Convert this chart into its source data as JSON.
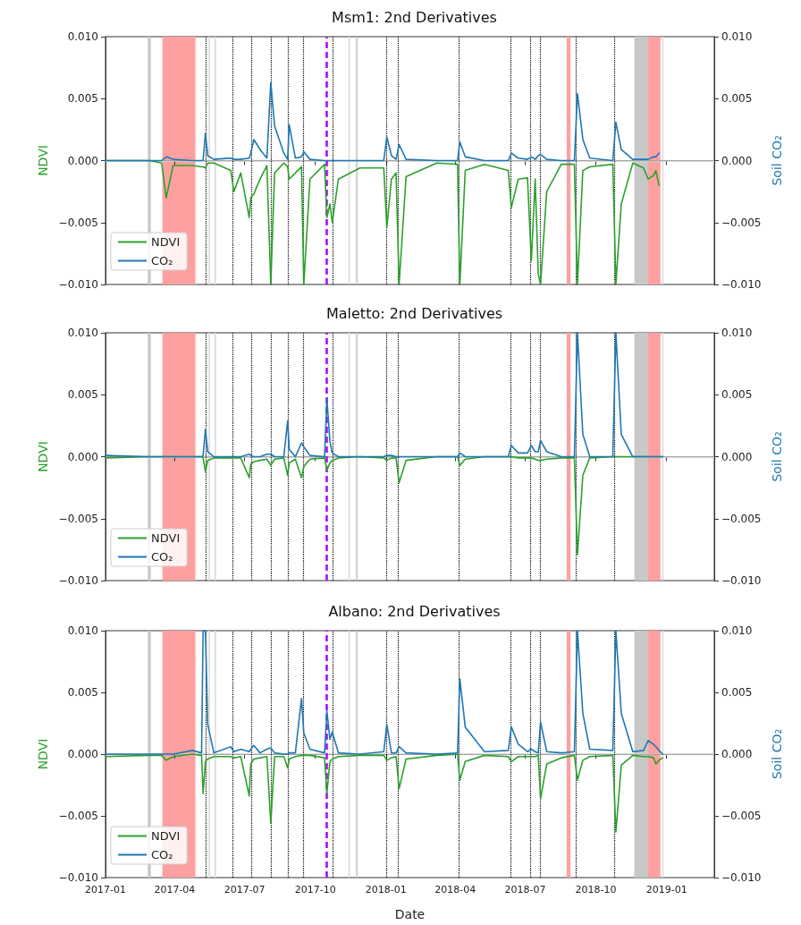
{
  "chart_data": [
    {
      "type": "line",
      "title": "Msm1: 2nd Derivatives",
      "ylabel": "NDVI",
      "y2label": "Soil CO₂",
      "x": [
        "2017-01-01",
        "2017-02-27",
        "2017-03-15",
        "2017-03-21",
        "2017-03-30",
        "2017-04-24",
        "2017-05-06",
        "2017-05-08",
        "2017-05-11",
        "2017-05-14",
        "2017-05-22",
        "2017-06-13",
        "2017-06-17",
        "2017-06-26",
        "2017-07-07",
        "2017-07-09",
        "2017-07-13",
        "2017-07-21",
        "2017-07-30",
        "2017-08-04",
        "2017-08-09",
        "2017-08-21",
        "2017-08-26",
        "2017-08-28",
        "2017-09-05",
        "2017-09-13",
        "2017-09-16",
        "2017-09-24",
        "2017-10-13",
        "2017-10-16",
        "2017-10-20",
        "2017-10-23",
        "2017-10-31",
        "2017-11-28",
        "2017-12-29",
        "2018-01-02",
        "2018-01-08",
        "2018-01-14",
        "2018-01-18",
        "2018-01-27",
        "2018-03-08",
        "2018-04-04",
        "2018-04-07",
        "2018-04-14",
        "2018-05-09",
        "2018-06-09",
        "2018-06-13",
        "2018-06-22",
        "2018-07-04",
        "2018-07-09",
        "2018-07-14",
        "2018-07-18",
        "2018-07-21",
        "2018-07-29",
        "2018-08-17",
        "2018-09-03",
        "2018-09-07",
        "2018-09-14",
        "2018-09-23",
        "2018-10-23",
        "2018-10-27",
        "2018-11-03",
        "2018-11-18",
        "2018-12-02",
        "2018-12-08",
        "2018-12-15",
        "2018-12-18",
        "2018-12-22"
      ],
      "series": [
        {
          "name": "NDVI",
          "color": "#2ca02c",
          "values": [
            0,
            0,
            -0.0002,
            -0.003,
            -0.0004,
            -0.0004,
            -0.0005,
            -0.0005,
            -0.0006,
            -0.0002,
            -0.0002,
            -0.0008,
            -0.0025,
            -0.001,
            -0.0046,
            -0.003,
            -0.0027,
            -0.0015,
            -0.0004,
            -0.01,
            -0.001,
            -0.0002,
            -0.0005,
            -0.0015,
            -0.001,
            -0.0005,
            -0.01,
            -0.0015,
            -0.0003,
            -0.0046,
            -0.0035,
            -0.005,
            -0.0015,
            -0.0006,
            -0.0006,
            -0.0054,
            -0.0015,
            -0.001,
            -0.01,
            -0.0013,
            -0.0002,
            -0.0003,
            -0.01,
            -0.0008,
            -0.0003,
            -0.0008,
            -0.0038,
            -0.0015,
            -0.0014,
            -0.0081,
            -0.0015,
            -0.0092,
            -0.01,
            -0.0025,
            -0.0003,
            -0.0003,
            -0.01,
            -0.0008,
            -0.0005,
            -0.0003,
            -0.01,
            -0.0035,
            -0.0002,
            -0.0006,
            -0.0015,
            -0.0012,
            -0.0008,
            -0.002
          ]
        },
        {
          "name": "CO₂",
          "color": "#1f77b4",
          "axis": "y2",
          "values": [
            0,
            0,
            0,
            0.0003,
            0.0001,
            0,
            0,
            0,
            0.0022,
            0.0004,
            0.0001,
            0.0002,
            0.0001,
            0.0001,
            0.0002,
            0.0006,
            0.0017,
            0.0009,
            0.0002,
            0.0063,
            0.0028,
            0.0006,
            0.0001,
            0.0029,
            0.0002,
            0.0003,
            0.0007,
            0.0001,
            0,
            0,
            0,
            0,
            0,
            0,
            0,
            0.0019,
            0.0004,
            0.0001,
            0.0013,
            0.0001,
            0,
            0,
            0.0015,
            0.0003,
            0,
            0,
            0.0006,
            0.0002,
            0.0001,
            0.0003,
            0.0001,
            0.0004,
            0.0005,
            0.0001,
            0,
            0,
            0.0054,
            0.0017,
            0.0002,
            0,
            0.0031,
            0.0009,
            0.0001,
            0.0001,
            0.0001,
            0.0003,
            0.0003,
            0.0006
          ]
        }
      ],
      "xlim": [
        "2017-01-01",
        "2019-03-04"
      ],
      "xticks": [
        "2017-01",
        "2017-04",
        "2017-07",
        "2017-10",
        "2018-01",
        "2018-04",
        "2018-07",
        "2018-10",
        "2019-01"
      ],
      "ylim": [
        -0.01,
        0.01
      ],
      "yticks": [
        {
          "value": -0.01,
          "label": "−0.010"
        },
        {
          "value": -0.005,
          "label": "−0.005"
        },
        {
          "value": 0,
          "label": "0.000"
        },
        {
          "value": 0.005,
          "label": "0.005"
        },
        {
          "value": 0.01,
          "label": "0.010"
        }
      ],
      "y2lim": [
        -0.01,
        0.01
      ],
      "y2ticks": [
        {
          "value": -0.01,
          "label": "−0.010"
        },
        {
          "value": -0.005,
          "label": "−0.005"
        },
        {
          "value": 0,
          "label": "0.000"
        },
        {
          "value": 0.005,
          "label": "0.005"
        },
        {
          "value": 0.01,
          "label": "0.010"
        }
      ],
      "bands": [
        {
          "axis": "x",
          "from": "2017-02-25",
          "to": "2017-03-01",
          "color": "#c8c8c8"
        },
        {
          "axis": "x",
          "from": "2017-03-16",
          "to": "2017-04-28",
          "color": "#ffa0a0"
        },
        {
          "axis": "x",
          "from": "2017-05-15",
          "to": "2017-05-17",
          "color": "#dddddd"
        },
        {
          "axis": "x",
          "from": "2017-05-23",
          "to": "2017-05-25",
          "color": "#dddddd"
        },
        {
          "axis": "x",
          "from": "2017-11-13",
          "to": "2017-11-15",
          "color": "#dddddd"
        },
        {
          "axis": "x",
          "from": "2017-11-23",
          "to": "2017-11-25",
          "color": "#c8c8c8"
        },
        {
          "axis": "x",
          "from": "2018-08-24",
          "to": "2018-08-29",
          "color": "#ffa0a0"
        },
        {
          "axis": "x",
          "from": "2018-11-20",
          "to": "2018-12-08",
          "color": "#c8c8c8"
        },
        {
          "axis": "x",
          "from": "2018-12-08",
          "to": "2018-12-24",
          "color": "#ffa0a0"
        },
        {
          "axis": "x",
          "from": "2018-12-26",
          "to": "2018-12-28",
          "color": "#dddddd"
        }
      ],
      "ref_lines": [
        {
          "axis": "y",
          "value": 0,
          "color": "#cccccc",
          "line_style": "solid"
        },
        {
          "axis": "x",
          "value": "2017-05-11",
          "color": "#000000",
          "line_style": "dotted"
        },
        {
          "axis": "x",
          "value": "2017-06-16",
          "color": "#000000",
          "line_style": "dotted"
        },
        {
          "axis": "x",
          "value": "2017-07-10",
          "color": "#000000",
          "line_style": "dotted"
        },
        {
          "axis": "x",
          "value": "2017-08-04",
          "color": "#000000",
          "line_style": "dotted"
        },
        {
          "axis": "x",
          "value": "2017-08-27",
          "color": "#000000",
          "line_style": "dotted"
        },
        {
          "axis": "x",
          "value": "2017-09-15",
          "color": "#000000",
          "line_style": "dotted"
        },
        {
          "axis": "x",
          "value": "2017-10-24",
          "color": "#000000",
          "line_style": "dotted"
        },
        {
          "axis": "x",
          "value": "2018-01-01",
          "color": "#000000",
          "line_style": "dotted"
        },
        {
          "axis": "x",
          "value": "2018-01-17",
          "color": "#000000",
          "line_style": "dotted"
        },
        {
          "axis": "x",
          "value": "2018-04-06",
          "color": "#000000",
          "line_style": "dotted"
        },
        {
          "axis": "x",
          "value": "2018-06-12",
          "color": "#000000",
          "line_style": "dotted"
        },
        {
          "axis": "x",
          "value": "2018-07-08",
          "color": "#000000",
          "line_style": "dotted"
        },
        {
          "axis": "x",
          "value": "2018-07-20",
          "color": "#000000",
          "line_style": "dotted"
        },
        {
          "axis": "x",
          "value": "2018-09-05",
          "color": "#000000",
          "line_style": "dotted"
        },
        {
          "axis": "x",
          "value": "2018-10-25",
          "color": "#000000",
          "line_style": "dotted"
        },
        {
          "axis": "x",
          "value": "2017-10-16",
          "color": "#aa00ff",
          "line_style": "dashed"
        }
      ],
      "legend": "bottom left",
      "tick_labels": "y"
    },
    {
      "type": "line",
      "title": "Maletto: 2nd Derivatives",
      "ylabel": "NDVI",
      "y2label": "Soil CO₂",
      "x": [
        "2017-01-01",
        "2017-02-27",
        "2017-03-15",
        "2017-03-21",
        "2017-03-30",
        "2017-04-24",
        "2017-05-06",
        "2017-05-08",
        "2017-05-11",
        "2017-05-14",
        "2017-05-22",
        "2017-06-13",
        "2017-06-17",
        "2017-06-26",
        "2017-07-07",
        "2017-07-09",
        "2017-07-13",
        "2017-07-21",
        "2017-07-30",
        "2017-08-04",
        "2017-08-09",
        "2017-08-21",
        "2017-08-26",
        "2017-08-28",
        "2017-09-05",
        "2017-09-13",
        "2017-09-16",
        "2017-09-24",
        "2017-10-13",
        "2017-10-16",
        "2017-10-20",
        "2017-10-23",
        "2017-10-31",
        "2017-11-28",
        "2017-12-29",
        "2018-01-02",
        "2018-01-08",
        "2018-01-14",
        "2018-01-18",
        "2018-01-27",
        "2018-03-08",
        "2018-04-04",
        "2018-04-07",
        "2018-04-14",
        "2018-05-09",
        "2018-06-09",
        "2018-06-13",
        "2018-06-22",
        "2018-07-04",
        "2018-07-09",
        "2018-07-14",
        "2018-07-18",
        "2018-07-21",
        "2018-07-29",
        "2018-08-17",
        "2018-09-03",
        "2018-09-07",
        "2018-09-14",
        "2018-09-23",
        "2018-10-23",
        "2018-10-27",
        "2018-11-03",
        "2018-11-18",
        "2018-12-02",
        "2018-12-08",
        "2018-12-15",
        "2018-12-18",
        "2018-12-22",
        "2018-12-27"
      ],
      "series": [
        {
          "name": "NDVI",
          "color": "#2ca02c",
          "values": [
            -0.0001,
            0,
            0,
            0,
            0,
            0,
            0,
            -0.0001,
            -0.0012,
            -0.0003,
            -0.0001,
            -0.0001,
            -0.0001,
            -0.0001,
            -0.0017,
            -0.0006,
            -0.0004,
            -0.0003,
            -0.0002,
            -0.0007,
            -0.0002,
            -0.0001,
            -0.0015,
            -0.0005,
            -0.0002,
            -0.0017,
            -0.0008,
            -0.0002,
            -0.0001,
            -0.0011,
            -0.0005,
            -0.0003,
            -0.0001,
            0,
            -0.0001,
            -0.0003,
            -0.0001,
            -0.0001,
            -0.0021,
            -0.0003,
            0,
            0,
            -0.0007,
            -0.0002,
            0,
            0,
            0,
            -0.0001,
            -0.0001,
            -0.0001,
            -0.0002,
            -0.0003,
            -0.0003,
            -0.0002,
            -0.0001,
            -0.0001,
            -0.0079,
            -0.0015,
            -0.0001,
            0,
            0,
            0,
            0,
            0,
            0,
            0,
            0,
            0,
            0
          ]
        },
        {
          "name": "CO₂",
          "color": "#1f77b4",
          "axis": "y2",
          "values": [
            0.0001,
            0,
            0,
            0,
            0,
            0,
            0,
            0.0001,
            0.0022,
            0.0004,
            0,
            0,
            0,
            0,
            0.0002,
            0.0001,
            0,
            0,
            0.0002,
            0.0002,
            0,
            0,
            0.0029,
            0.0006,
            0,
            0.0011,
            0.0008,
            0.0001,
            0,
            0.0047,
            0.0012,
            0.0003,
            0,
            0,
            0,
            0.0001,
            0.0001,
            0,
            0,
            0,
            0,
            0,
            0.0003,
            0,
            0,
            0,
            0.0009,
            0.0003,
            0.0003,
            0.0009,
            0.0004,
            0.0004,
            0.0013,
            0.0004,
            0,
            0,
            0.01,
            0.0018,
            0,
            0,
            0.01,
            0.0018,
            0,
            0,
            0,
            0,
            0,
            0,
            0
          ]
        }
      ],
      "xlim": [
        "2017-01-01",
        "2019-03-04"
      ],
      "xticks": [
        "2017-01",
        "2017-04",
        "2017-07",
        "2017-10",
        "2018-01",
        "2018-04",
        "2018-07",
        "2018-10",
        "2019-01"
      ],
      "ylim": [
        -0.01,
        0.01
      ],
      "yticks": [
        {
          "value": -0.01,
          "label": "−0.010"
        },
        {
          "value": -0.005,
          "label": "−0.005"
        },
        {
          "value": 0,
          "label": "0.000"
        },
        {
          "value": 0.005,
          "label": "0.005"
        },
        {
          "value": 0.01,
          "label": "0.010"
        }
      ],
      "y2lim": [
        -0.01,
        0.01
      ],
      "y2ticks": [
        {
          "value": -0.01,
          "label": "−0.010"
        },
        {
          "value": -0.005,
          "label": "−0.005"
        },
        {
          "value": 0,
          "label": "0.000"
        },
        {
          "value": 0.005,
          "label": "0.005"
        },
        {
          "value": 0.01,
          "label": "0.010"
        }
      ],
      "bands": [
        {
          "axis": "x",
          "from": "2017-02-25",
          "to": "2017-03-01",
          "color": "#c8c8c8"
        },
        {
          "axis": "x",
          "from": "2017-03-16",
          "to": "2017-04-28",
          "color": "#ffa0a0"
        },
        {
          "axis": "x",
          "from": "2017-05-15",
          "to": "2017-05-17",
          "color": "#dddddd"
        },
        {
          "axis": "x",
          "from": "2017-05-23",
          "to": "2017-05-25",
          "color": "#dddddd"
        },
        {
          "axis": "x",
          "from": "2017-11-13",
          "to": "2017-11-15",
          "color": "#dddddd"
        },
        {
          "axis": "x",
          "from": "2017-11-23",
          "to": "2017-11-25",
          "color": "#c8c8c8"
        },
        {
          "axis": "x",
          "from": "2018-08-24",
          "to": "2018-08-29",
          "color": "#ffa0a0"
        },
        {
          "axis": "x",
          "from": "2018-11-20",
          "to": "2018-12-08",
          "color": "#c8c8c8"
        },
        {
          "axis": "x",
          "from": "2018-12-08",
          "to": "2018-12-24",
          "color": "#ffa0a0"
        },
        {
          "axis": "x",
          "from": "2018-12-26",
          "to": "2018-12-28",
          "color": "#dddddd"
        }
      ],
      "ref_lines": [
        {
          "axis": "y",
          "value": 0,
          "color": "#cccccc",
          "line_style": "solid"
        },
        {
          "axis": "x",
          "value": "2017-05-11",
          "color": "#000000",
          "line_style": "dotted"
        },
        {
          "axis": "x",
          "value": "2017-06-16",
          "color": "#000000",
          "line_style": "dotted"
        },
        {
          "axis": "x",
          "value": "2017-07-10",
          "color": "#000000",
          "line_style": "dotted"
        },
        {
          "axis": "x",
          "value": "2017-08-04",
          "color": "#000000",
          "line_style": "dotted"
        },
        {
          "axis": "x",
          "value": "2017-08-27",
          "color": "#000000",
          "line_style": "dotted"
        },
        {
          "axis": "x",
          "value": "2017-09-15",
          "color": "#000000",
          "line_style": "dotted"
        },
        {
          "axis": "x",
          "value": "2017-10-24",
          "color": "#000000",
          "line_style": "dotted"
        },
        {
          "axis": "x",
          "value": "2018-01-01",
          "color": "#000000",
          "line_style": "dotted"
        },
        {
          "axis": "x",
          "value": "2018-01-17",
          "color": "#000000",
          "line_style": "dotted"
        },
        {
          "axis": "x",
          "value": "2018-04-06",
          "color": "#000000",
          "line_style": "dotted"
        },
        {
          "axis": "x",
          "value": "2018-06-12",
          "color": "#000000",
          "line_style": "dotted"
        },
        {
          "axis": "x",
          "value": "2018-07-08",
          "color": "#000000",
          "line_style": "dotted"
        },
        {
          "axis": "x",
          "value": "2018-07-20",
          "color": "#000000",
          "line_style": "dotted"
        },
        {
          "axis": "x",
          "value": "2018-09-05",
          "color": "#000000",
          "line_style": "dotted"
        },
        {
          "axis": "x",
          "value": "2018-10-25",
          "color": "#000000",
          "line_style": "dotted"
        },
        {
          "axis": "x",
          "value": "2017-10-16",
          "color": "#aa00ff",
          "line_style": "dashed"
        }
      ],
      "legend": "bottom left",
      "tick_labels": "y"
    },
    {
      "type": "line",
      "title": "Albano: 2nd Derivatives",
      "xlabel": "Date",
      "ylabel": "NDVI",
      "y2label": "Soil CO₂",
      "x": [
        "2017-01-01",
        "2017-02-27",
        "2017-03-15",
        "2017-03-21",
        "2017-03-30",
        "2017-04-24",
        "2017-05-06",
        "2017-05-08",
        "2017-05-11",
        "2017-05-14",
        "2017-05-22",
        "2017-06-13",
        "2017-06-17",
        "2017-06-26",
        "2017-07-07",
        "2017-07-09",
        "2017-07-13",
        "2017-07-21",
        "2017-07-30",
        "2017-08-04",
        "2017-08-09",
        "2017-08-21",
        "2017-08-26",
        "2017-08-28",
        "2017-09-05",
        "2017-09-13",
        "2017-09-16",
        "2017-09-24",
        "2017-10-13",
        "2017-10-16",
        "2017-10-20",
        "2017-10-23",
        "2017-10-31",
        "2017-11-28",
        "2017-12-29",
        "2018-01-02",
        "2018-01-08",
        "2018-01-14",
        "2018-01-18",
        "2018-01-27",
        "2018-03-08",
        "2018-04-04",
        "2018-04-07",
        "2018-04-14",
        "2018-05-09",
        "2018-06-09",
        "2018-06-13",
        "2018-06-22",
        "2018-07-04",
        "2018-07-09",
        "2018-07-14",
        "2018-07-18",
        "2018-07-21",
        "2018-07-29",
        "2018-08-17",
        "2018-09-03",
        "2018-09-07",
        "2018-09-14",
        "2018-09-23",
        "2018-10-23",
        "2018-10-27",
        "2018-11-03",
        "2018-11-18",
        "2018-12-02",
        "2018-12-08",
        "2018-12-15",
        "2018-12-18",
        "2018-12-22",
        "2018-12-27"
      ],
      "series": [
        {
          "name": "NDVI",
          "color": "#2ca02c",
          "values": [
            -0.0002,
            -0.0001,
            -0.0001,
            -0.0005,
            -0.0002,
            0,
            -0.0001,
            -0.0032,
            -0.0006,
            -0.0004,
            -0.0002,
            -0.0002,
            -0.0003,
            -0.0002,
            -0.0034,
            -0.0008,
            -0.0004,
            -0.0003,
            -0.0002,
            -0.0056,
            -0.0002,
            -0.0002,
            -0.0011,
            -0.0004,
            -0.0002,
            -0.0001,
            -0.0001,
            -0.0001,
            -0.0003,
            -0.0032,
            -0.0006,
            -0.0004,
            -0.0002,
            -0.0001,
            -0.0001,
            -0.0005,
            -0.0003,
            -0.0002,
            -0.0028,
            -0.0004,
            -0.0001,
            0,
            -0.0021,
            -0.0006,
            -0.0001,
            -0.0002,
            -0.0006,
            -0.0002,
            -0.0002,
            -0.0002,
            -0.0002,
            -0.0001,
            -0.0036,
            -0.0008,
            -0.0003,
            -0.0001,
            -0.0021,
            -0.0005,
            -0.0002,
            -0.0001,
            -0.0063,
            -0.0009,
            -0.0001,
            -0.0002,
            -0.0002,
            -0.0003,
            -0.0008,
            -0.0005,
            -0.0003
          ]
        },
        {
          "name": "CO₂",
          "color": "#1f77b4",
          "axis": "y2",
          "values": [
            0,
            0,
            0,
            0,
            0,
            0.0003,
            0.0001,
            0.01,
            0.01,
            0.0024,
            0.0001,
            0.0006,
            0.0002,
            0.0004,
            0.0002,
            0.0004,
            0.0007,
            0.0001,
            0.0004,
            0.0005,
            0.0001,
            0,
            0,
            0.0001,
            0.0001,
            0.0045,
            0.0017,
            0.0004,
            0.0001,
            0.0035,
            0.0012,
            0.0018,
            0.0001,
            0,
            0.0002,
            0.0024,
            0.0001,
            0.0001,
            0.0006,
            0.0001,
            0,
            0.0001,
            0.0061,
            0.0022,
            0.0002,
            0.0003,
            0.0022,
            0.0008,
            0.0002,
            0.0004,
            0.0002,
            0.0001,
            0.0026,
            0.0002,
            0.0001,
            0.0002,
            0.01,
            0.0033,
            0.0004,
            0.0003,
            0.01,
            0.0033,
            0.0002,
            0.0003,
            0.0011,
            0.0008,
            0.0006,
            0.0003,
            0
          ]
        }
      ],
      "xlim": [
        "2017-01-01",
        "2019-03-04"
      ],
      "xticks": [
        "2017-01",
        "2017-04",
        "2017-07",
        "2017-10",
        "2018-01",
        "2018-04",
        "2018-07",
        "2018-10",
        "2019-01"
      ],
      "ylim": [
        -0.01,
        0.01
      ],
      "yticks": [
        {
          "value": -0.01,
          "label": "−0.010"
        },
        {
          "value": -0.005,
          "label": "−0.005"
        },
        {
          "value": 0,
          "label": "0.000"
        },
        {
          "value": 0.005,
          "label": "0.005"
        },
        {
          "value": 0.01,
          "label": "0.010"
        }
      ],
      "y2lim": [
        -0.01,
        0.01
      ],
      "y2ticks": [
        {
          "value": -0.01,
          "label": "−0.010"
        },
        {
          "value": -0.005,
          "label": "−0.005"
        },
        {
          "value": 0,
          "label": "0.000"
        },
        {
          "value": 0.005,
          "label": "0.005"
        },
        {
          "value": 0.01,
          "label": "0.010"
        }
      ],
      "bands": [
        {
          "axis": "x",
          "from": "2017-02-25",
          "to": "2017-03-01",
          "color": "#c8c8c8"
        },
        {
          "axis": "x",
          "from": "2017-03-16",
          "to": "2017-04-28",
          "color": "#ffa0a0"
        },
        {
          "axis": "x",
          "from": "2017-05-15",
          "to": "2017-05-17",
          "color": "#dddddd"
        },
        {
          "axis": "x",
          "from": "2017-05-23",
          "to": "2017-05-25",
          "color": "#dddddd"
        },
        {
          "axis": "x",
          "from": "2017-11-13",
          "to": "2017-11-15",
          "color": "#dddddd"
        },
        {
          "axis": "x",
          "from": "2017-11-23",
          "to": "2017-11-25",
          "color": "#c8c8c8"
        },
        {
          "axis": "x",
          "from": "2018-08-24",
          "to": "2018-08-29",
          "color": "#ffa0a0"
        },
        {
          "axis": "x",
          "from": "2018-11-20",
          "to": "2018-12-08",
          "color": "#c8c8c8"
        },
        {
          "axis": "x",
          "from": "2018-12-08",
          "to": "2018-12-24",
          "color": "#ffa0a0"
        },
        {
          "axis": "x",
          "from": "2018-12-26",
          "to": "2018-12-28",
          "color": "#dddddd"
        }
      ],
      "ref_lines": [
        {
          "axis": "y",
          "value": 0,
          "color": "#cccccc",
          "line_style": "solid"
        },
        {
          "axis": "x",
          "value": "2017-05-11",
          "color": "#000000",
          "line_style": "dotted"
        },
        {
          "axis": "x",
          "value": "2017-06-16",
          "color": "#000000",
          "line_style": "dotted"
        },
        {
          "axis": "x",
          "value": "2017-07-10",
          "color": "#000000",
          "line_style": "dotted"
        },
        {
          "axis": "x",
          "value": "2017-08-04",
          "color": "#000000",
          "line_style": "dotted"
        },
        {
          "axis": "x",
          "value": "2017-08-27",
          "color": "#000000",
          "line_style": "dotted"
        },
        {
          "axis": "x",
          "value": "2017-09-15",
          "color": "#000000",
          "line_style": "dotted"
        },
        {
          "axis": "x",
          "value": "2017-10-24",
          "color": "#000000",
          "line_style": "dotted"
        },
        {
          "axis": "x",
          "value": "2018-01-01",
          "color": "#000000",
          "line_style": "dotted"
        },
        {
          "axis": "x",
          "value": "2018-01-17",
          "color": "#000000",
          "line_style": "dotted"
        },
        {
          "axis": "x",
          "value": "2018-04-06",
          "color": "#000000",
          "line_style": "dotted"
        },
        {
          "axis": "x",
          "value": "2018-06-12",
          "color": "#000000",
          "line_style": "dotted"
        },
        {
          "axis": "x",
          "value": "2018-07-08",
          "color": "#000000",
          "line_style": "dotted"
        },
        {
          "axis": "x",
          "value": "2018-07-20",
          "color": "#000000",
          "line_style": "dotted"
        },
        {
          "axis": "x",
          "value": "2018-09-05",
          "color": "#000000",
          "line_style": "dotted"
        },
        {
          "axis": "x",
          "value": "2018-10-25",
          "color": "#000000",
          "line_style": "dotted"
        },
        {
          "axis": "x",
          "value": "2017-10-16",
          "color": "#aa00ff",
          "line_style": "dashed"
        }
      ],
      "legend": "bottom left"
    }
  ]
}
